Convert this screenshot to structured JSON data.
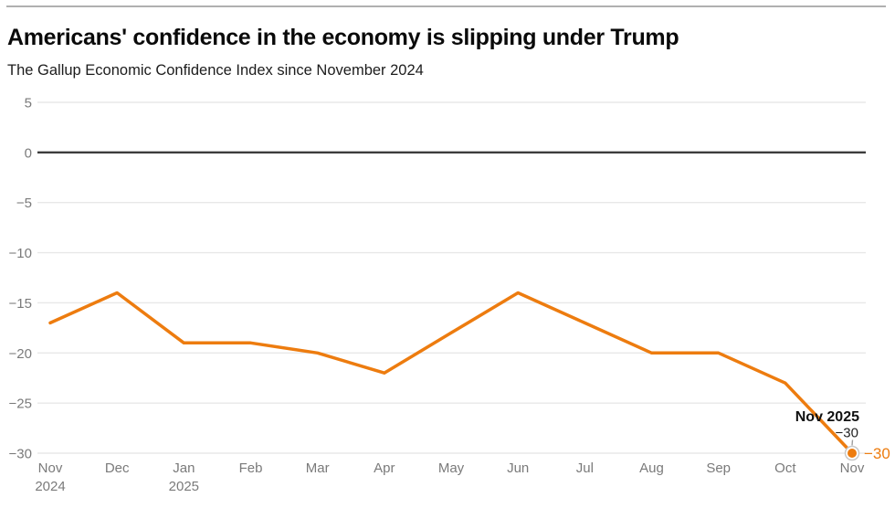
{
  "header": {
    "title": "Americans' confidence in the economy is slipping under Trump",
    "subtitle": "The Gallup Economic Confidence Index since November 2024"
  },
  "chart_data": {
    "type": "line",
    "title": "Americans' confidence in the economy is slipping under Trump",
    "subtitle": "The Gallup Economic Confidence Index since November 2024",
    "categories": [
      {
        "label": "Nov",
        "sub": "2024"
      },
      {
        "label": "Dec",
        "sub": ""
      },
      {
        "label": "Jan",
        "sub": "2025"
      },
      {
        "label": "Feb",
        "sub": ""
      },
      {
        "label": "Mar",
        "sub": ""
      },
      {
        "label": "Apr",
        "sub": ""
      },
      {
        "label": "May",
        "sub": ""
      },
      {
        "label": "Jun",
        "sub": ""
      },
      {
        "label": "Jul",
        "sub": ""
      },
      {
        "label": "Aug",
        "sub": ""
      },
      {
        "label": "Sep",
        "sub": ""
      },
      {
        "label": "Oct",
        "sub": ""
      },
      {
        "label": "Nov",
        "sub": ""
      }
    ],
    "values": [
      -17,
      -14,
      -19,
      -19,
      -20,
      -22,
      -18,
      -14,
      -17,
      -20,
      -20,
      -23,
      -30
    ],
    "xlabel": "",
    "ylabel": "",
    "ylim": [
      -30,
      5
    ],
    "grid": true,
    "legend_position": "none",
    "yticks": [
      {
        "v": 5,
        "label": "5"
      },
      {
        "v": 0,
        "label": "0"
      },
      {
        "v": -5,
        "label": "−5"
      },
      {
        "v": -10,
        "label": "−10"
      },
      {
        "v": -15,
        "label": "−15"
      },
      {
        "v": -20,
        "label": "−20"
      },
      {
        "v": -25,
        "label": "−25"
      },
      {
        "v": -30,
        "label": "−30"
      }
    ],
    "annotation": {
      "title": "Nov 2025",
      "value_label": "−30",
      "end_label": "−30"
    },
    "colors": {
      "line": "#ed7c0f",
      "grid": "#e8e8e8",
      "zero_line": "#3c3c3c",
      "axis_text": "#7a7a7a",
      "annotation_title": "#111111",
      "annotation_value": "#222222",
      "marker_ring": "#c9c9c9",
      "connector": "#9e9e9e"
    }
  }
}
